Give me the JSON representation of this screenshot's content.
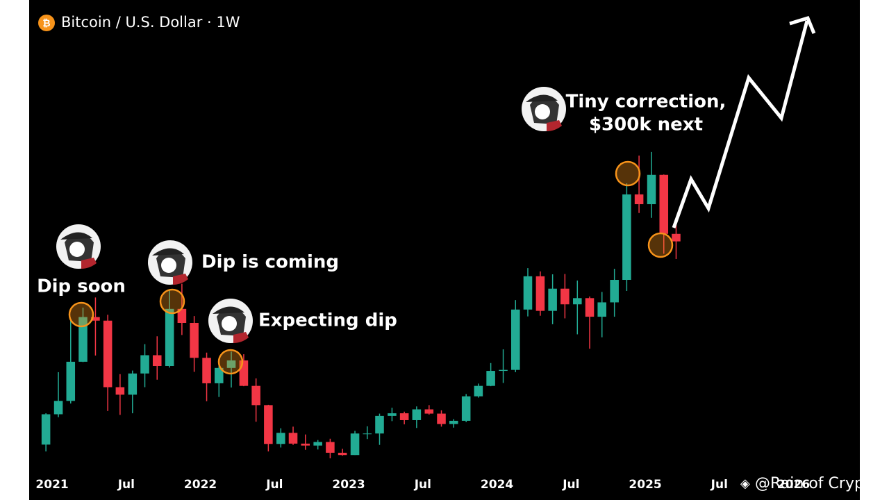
{
  "chart_data": {
    "type": "candlestick",
    "title": "Bitcoin / U.S. Dollar · 1W",
    "watermark": "@Rain of Crypto",
    "annotations": [
      "Dip soon",
      "Dip is coming",
      "Expecting dip",
      "Tiny correction,",
      "$300k next"
    ],
    "up_color": "#22ab94",
    "down_color": "#f23645",
    "xlim": [
      2020.845,
      2026.447
    ],
    "xticks": [
      {
        "value": 2021,
        "label": "2021"
      },
      {
        "value": 2021.5,
        "label": "Jul"
      },
      {
        "value": 2022,
        "label": "2022"
      },
      {
        "value": 2022.5,
        "label": "Jul"
      },
      {
        "value": 2023,
        "label": "2023"
      },
      {
        "value": 2023.5,
        "label": "Jul"
      },
      {
        "value": 2024,
        "label": "2024"
      },
      {
        "value": 2024.5,
        "label": "Jul"
      },
      {
        "value": 2025,
        "label": "2025"
      },
      {
        "value": 2025.5,
        "label": "Jul"
      },
      {
        "value": 2026,
        "label": "2026"
      }
    ],
    "ylim": [
      9100,
      156000
    ],
    "x": [
      2020.958,
      2021.042,
      2021.125,
      2021.208,
      2021.292,
      2021.375,
      2021.458,
      2021.542,
      2021.625,
      2021.708,
      2021.792,
      2021.875,
      2021.958,
      2022.042,
      2022.125,
      2022.208,
      2022.292,
      2022.375,
      2022.458,
      2022.542,
      2022.625,
      2022.708,
      2022.792,
      2022.875,
      2022.958,
      2023.042,
      2023.125,
      2023.208,
      2023.292,
      2023.375,
      2023.458,
      2023.542,
      2023.625,
      2023.708,
      2023.792,
      2023.875,
      2023.958,
      2024.042,
      2024.125,
      2024.208,
      2024.292,
      2024.375,
      2024.458,
      2024.542,
      2024.625,
      2024.708,
      2024.792,
      2024.875,
      2024.958,
      2025.042,
      2025.125,
      2025.208
    ],
    "open": [
      19700,
      29000,
      33100,
      45100,
      58800,
      57700,
      37300,
      35000,
      41500,
      47100,
      43800,
      61300,
      57000,
      46300,
      38500,
      43200,
      45500,
      37700,
      31800,
      19900,
      23300,
      20000,
      19400,
      20500,
      17200,
      16500,
      23100,
      23100,
      28500,
      29300,
      27200,
      30500,
      29200,
      26000,
      27000,
      34500,
      37700,
      42300,
      42600,
      61100,
      71300,
      60700,
      67500,
      62700,
      64600,
      58900,
      63300,
      70200,
      96400,
      93400,
      102400,
      84300
    ],
    "high": [
      29300,
      41900,
      58300,
      61700,
      64800,
      59500,
      41300,
      42400,
      50500,
      52900,
      67000,
      69000,
      59100,
      47900,
      45800,
      48200,
      47400,
      40000,
      31900,
      24700,
      25200,
      22800,
      21100,
      21500,
      18400,
      23900,
      25300,
      29200,
      31000,
      29800,
      31400,
      31800,
      30200,
      27500,
      35200,
      38400,
      44700,
      48900,
      64000,
      73800,
      72800,
      71900,
      72000,
      70000,
      65100,
      66500,
      73600,
      99800,
      108300,
      109400,
      102500,
      87000
    ],
    "low": [
      17600,
      28100,
      32300,
      45000,
      47000,
      30000,
      28800,
      29300,
      37300,
      39600,
      43300,
      53300,
      42000,
      33000,
      34300,
      37200,
      37600,
      26700,
      17600,
      18800,
      19600,
      18100,
      18200,
      15500,
      16300,
      16500,
      21400,
      19600,
      26900,
      25900,
      24800,
      28900,
      25200,
      24900,
      26600,
      34100,
      37600,
      38600,
      41900,
      59000,
      59200,
      56600,
      58400,
      53500,
      49100,
      52600,
      58900,
      66800,
      90700,
      89200,
      78200,
      76600
    ],
    "close": [
      29000,
      33100,
      45100,
      58800,
      57700,
      37300,
      35000,
      41500,
      47100,
      43800,
      61300,
      57000,
      46300,
      38500,
      43200,
      45500,
      37700,
      31800,
      19900,
      23300,
      20000,
      19400,
      20500,
      17200,
      16500,
      23100,
      23100,
      28500,
      29300,
      27200,
      30500,
      29200,
      26000,
      27000,
      34500,
      37700,
      42300,
      42600,
      61100,
      71300,
      60700,
      67500,
      62700,
      64600,
      58900,
      63300,
      70200,
      96400,
      93400,
      102400,
      84300,
      82000
    ]
  }
}
